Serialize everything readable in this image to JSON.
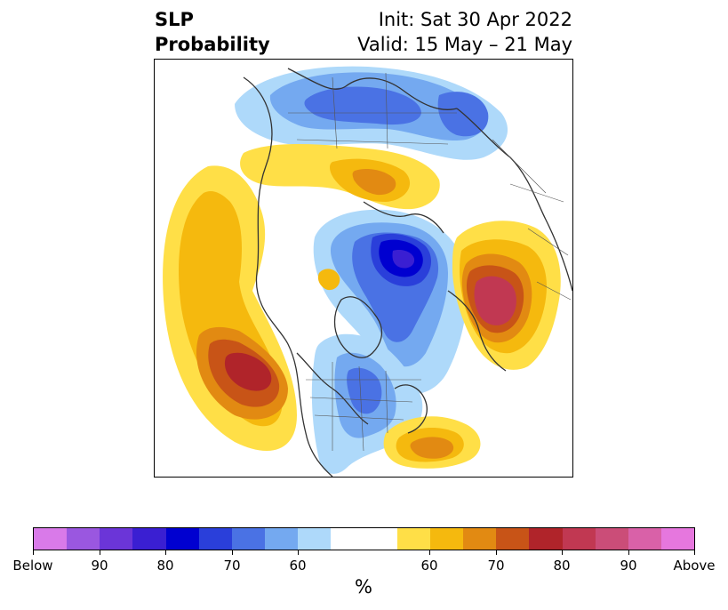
{
  "header": {
    "title_line1": "SLP",
    "title_line2": "Probability",
    "init": "Init: Sat 30 Apr 2022",
    "valid": "Valid: 15 May – 21 May"
  },
  "colorbar": {
    "unit": "%",
    "colors": [
      "#d97ae9",
      "#9a57e0",
      "#6b35d8",
      "#3a1fd2",
      "#0000d0",
      "#2a3fda",
      "#4a72e4",
      "#74a9f0",
      "#aed9fa",
      "#ffffff",
      "#ffffff",
      "#ffdf47",
      "#f5b90e",
      "#e28a12",
      "#c85417",
      "#b0242a",
      "#c13852",
      "#cb4d78",
      "#d961a8",
      "#e677de"
    ],
    "ticks": [
      "Below",
      "90",
      "80",
      "70",
      "60",
      "60",
      "70",
      "80",
      "90",
      "Above"
    ]
  }
}
